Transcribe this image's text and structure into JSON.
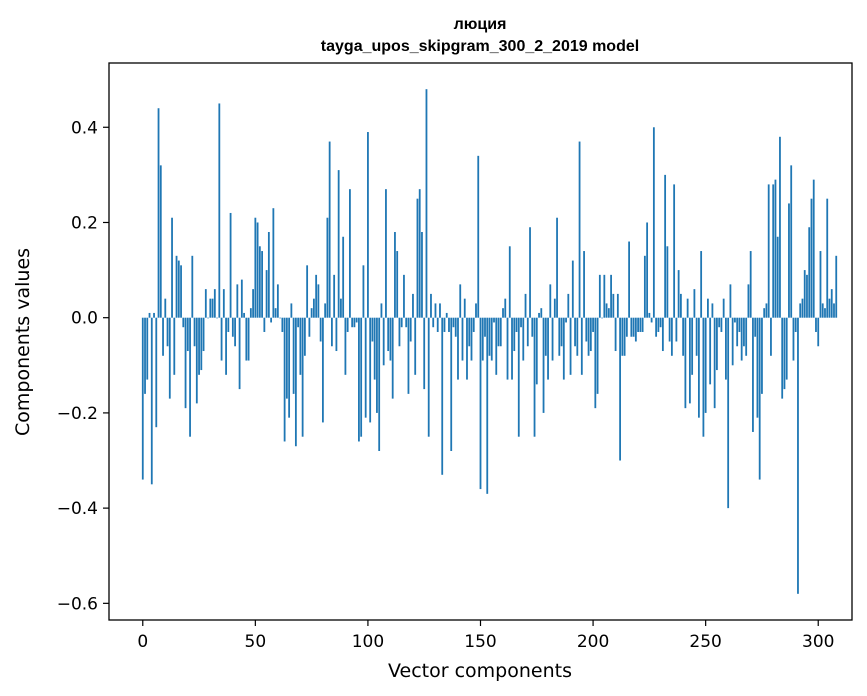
{
  "chart_data": {
    "type": "bar",
    "title_line1": "люция",
    "title_line2": "tayga_upos_skipgram_300_2_2019 model",
    "xlabel": "Vector components",
    "ylabel": "Components values",
    "xlim": [
      -15,
      315
    ],
    "ylim": [
      -0.635,
      0.535
    ],
    "xticks": [
      0,
      50,
      100,
      150,
      200,
      250,
      300
    ],
    "xtick_labels": [
      "0",
      "50",
      "100",
      "150",
      "200",
      "250",
      "300"
    ],
    "yticks": [
      -0.6,
      -0.4,
      -0.2,
      0.0,
      0.2,
      0.4
    ],
    "ytick_labels": [
      "−0.6",
      "−0.4",
      "−0.2",
      "0.0",
      "0.2",
      "0.4"
    ],
    "bar_color": "#1f77b4",
    "grid": false,
    "values": [
      -0.34,
      -0.16,
      -0.13,
      0.01,
      -0.35,
      0.01,
      -0.23,
      0.44,
      0.32,
      -0.08,
      0.04,
      -0.06,
      -0.17,
      0.21,
      -0.12,
      0.13,
      0.12,
      0.11,
      -0.02,
      -0.19,
      -0.07,
      -0.25,
      0.13,
      -0.06,
      -0.18,
      -0.12,
      -0.11,
      -0.07,
      0.06,
      0.0,
      0.04,
      0.04,
      0.06,
      0.0,
      0.45,
      -0.09,
      0.06,
      -0.12,
      -0.03,
      0.22,
      -0.04,
      -0.06,
      0.07,
      -0.15,
      0.08,
      0.01,
      -0.09,
      -0.09,
      0.02,
      0.06,
      0.21,
      0.2,
      0.15,
      0.14,
      -0.03,
      0.1,
      0.18,
      -0.01,
      0.23,
      0.02,
      0.07,
      0.0,
      -0.03,
      -0.26,
      -0.17,
      -0.21,
      0.03,
      -0.16,
      -0.27,
      -0.02,
      -0.12,
      -0.25,
      -0.08,
      0.11,
      -0.04,
      0.02,
      0.04,
      0.09,
      0.07,
      -0.05,
      -0.22,
      0.03,
      0.21,
      0.37,
      -0.06,
      0.09,
      -0.07,
      0.31,
      0.04,
      0.17,
      -0.12,
      -0.03,
      0.27,
      -0.02,
      -0.02,
      -0.01,
      -0.26,
      -0.25,
      0.11,
      -0.21,
      0.39,
      -0.22,
      -0.05,
      -0.13,
      -0.2,
      -0.28,
      0.03,
      -0.1,
      0.27,
      -0.07,
      -0.09,
      -0.17,
      0.18,
      0.14,
      -0.06,
      -0.02,
      0.09,
      -0.02,
      -0.16,
      -0.05,
      0.05,
      -0.12,
      0.25,
      0.27,
      0.18,
      -0.15,
      0.48,
      -0.25,
      0.05,
      -0.02,
      0.03,
      -0.03,
      0.03,
      -0.33,
      -0.03,
      0.01,
      -0.03,
      -0.28,
      -0.02,
      -0.04,
      -0.13,
      0.07,
      -0.09,
      0.04,
      -0.13,
      -0.06,
      -0.09,
      -0.03,
      0.03,
      0.34,
      -0.36,
      -0.09,
      -0.04,
      -0.37,
      -0.08,
      -0.09,
      -0.01,
      -0.12,
      -0.06,
      -0.06,
      0.02,
      0.04,
      -0.13,
      0.15,
      -0.13,
      -0.07,
      -0.03,
      -0.25,
      -0.02,
      -0.09,
      0.05,
      -0.06,
      0.19,
      -0.04,
      -0.25,
      -0.14,
      0.01,
      0.02,
      -0.2,
      -0.08,
      -0.13,
      0.07,
      -0.09,
      0.04,
      0.21,
      -0.08,
      -0.06,
      -0.13,
      -0.01,
      0.05,
      -0.12,
      0.12,
      -0.06,
      -0.08,
      0.37,
      -0.12,
      0.14,
      -0.05,
      -0.08,
      -0.07,
      -0.03,
      -0.19,
      -0.16,
      0.09,
      0.0,
      0.09,
      0.03,
      0.02,
      0.09,
      0.05,
      -0.07,
      0.05,
      -0.3,
      -0.08,
      -0.08,
      -0.04,
      0.16,
      -0.04,
      -0.04,
      -0.05,
      -0.03,
      -0.03,
      -0.03,
      0.13,
      0.2,
      0.01,
      -0.01,
      0.4,
      -0.04,
      -0.03,
      -0.02,
      -0.07,
      0.3,
      0.15,
      -0.05,
      -0.08,
      0.28,
      -0.05,
      0.1,
      0.05,
      -0.08,
      -0.19,
      0.04,
      -0.18,
      -0.12,
      0.06,
      -0.08,
      -0.21,
      0.14,
      -0.25,
      -0.2,
      0.04,
      -0.14,
      0.03,
      -0.19,
      -0.11,
      -0.02,
      -0.03,
      0.04,
      -0.13,
      -0.4,
      0.07,
      -0.1,
      -0.01,
      -0.06,
      -0.03,
      -0.09,
      -0.06,
      -0.08,
      0.07,
      0.14,
      -0.24,
      -0.04,
      -0.21,
      -0.34,
      -0.16,
      0.02,
      0.03,
      0.28,
      -0.08,
      0.28,
      0.29,
      0.17,
      0.38,
      -0.17,
      -0.15,
      -0.13,
      0.24,
      0.32,
      -0.09,
      -0.03,
      -0.58,
      0.03,
      0.04,
      0.1,
      0.09,
      0.19,
      0.25,
      0.29,
      -0.03,
      -0.06,
      0.14,
      0.03,
      0.02,
      0.25,
      0.04,
      0.06,
      0.03,
      0.13
    ]
  }
}
